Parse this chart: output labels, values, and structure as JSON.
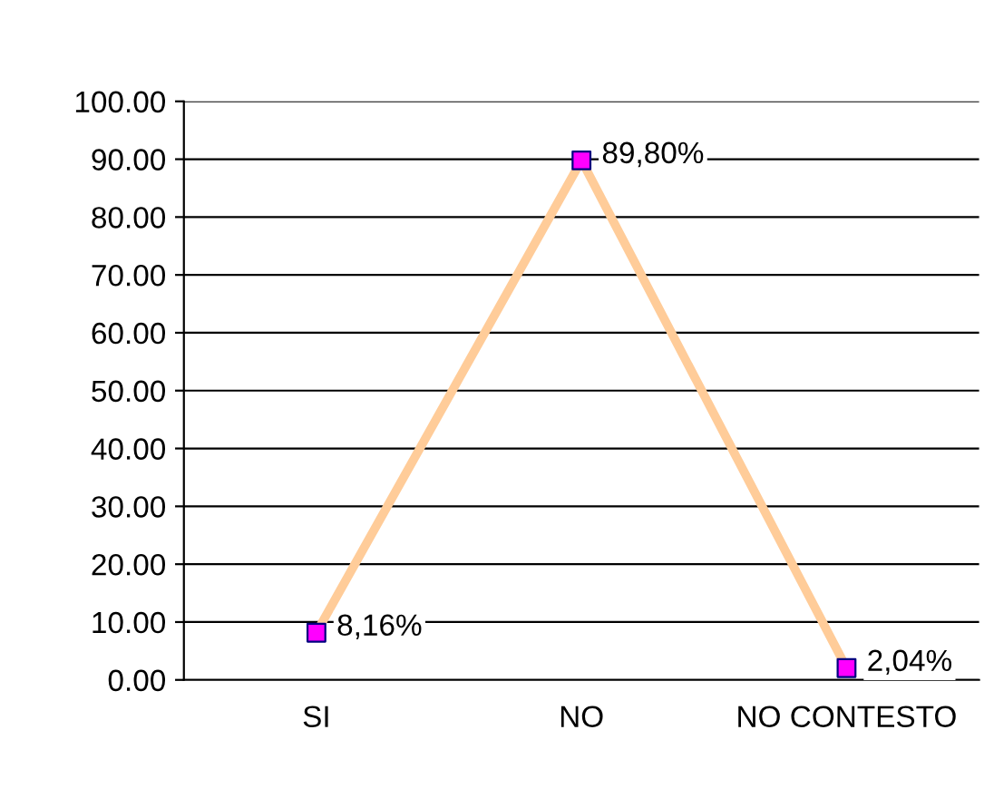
{
  "chart_data": {
    "type": "line",
    "categories": [
      "SI",
      "NO",
      "NO CONTESTO"
    ],
    "series": [
      {
        "color": "#ffcc99",
        "colors": [
          "#ff00ff",
          "#ff00ff",
          "#ff00ff"
        ],
        "values": [
          8.16,
          89.8,
          2.04
        ],
        "value_labels": [
          "8,16%",
          "89,80%",
          "2,04%"
        ]
      }
    ],
    "ylim": [
      0,
      100
    ],
    "yticks": [
      {
        "value": 0,
        "label": "0.00"
      },
      {
        "value": 10,
        "label": "10.00"
      },
      {
        "value": 20,
        "label": "20.00"
      },
      {
        "value": 30,
        "label": "30.00"
      },
      {
        "value": 40,
        "label": "40.00"
      },
      {
        "value": 50,
        "label": "50.00"
      },
      {
        "value": 60,
        "label": "60.00"
      },
      {
        "value": 70,
        "label": "70.00"
      },
      {
        "value": 80,
        "label": "80.00"
      },
      {
        "value": 90,
        "label": "90.00"
      },
      {
        "value": 100,
        "label": "100.00"
      }
    ],
    "grid": "y",
    "marker": "square",
    "line_style": "solid",
    "legend": false
  }
}
